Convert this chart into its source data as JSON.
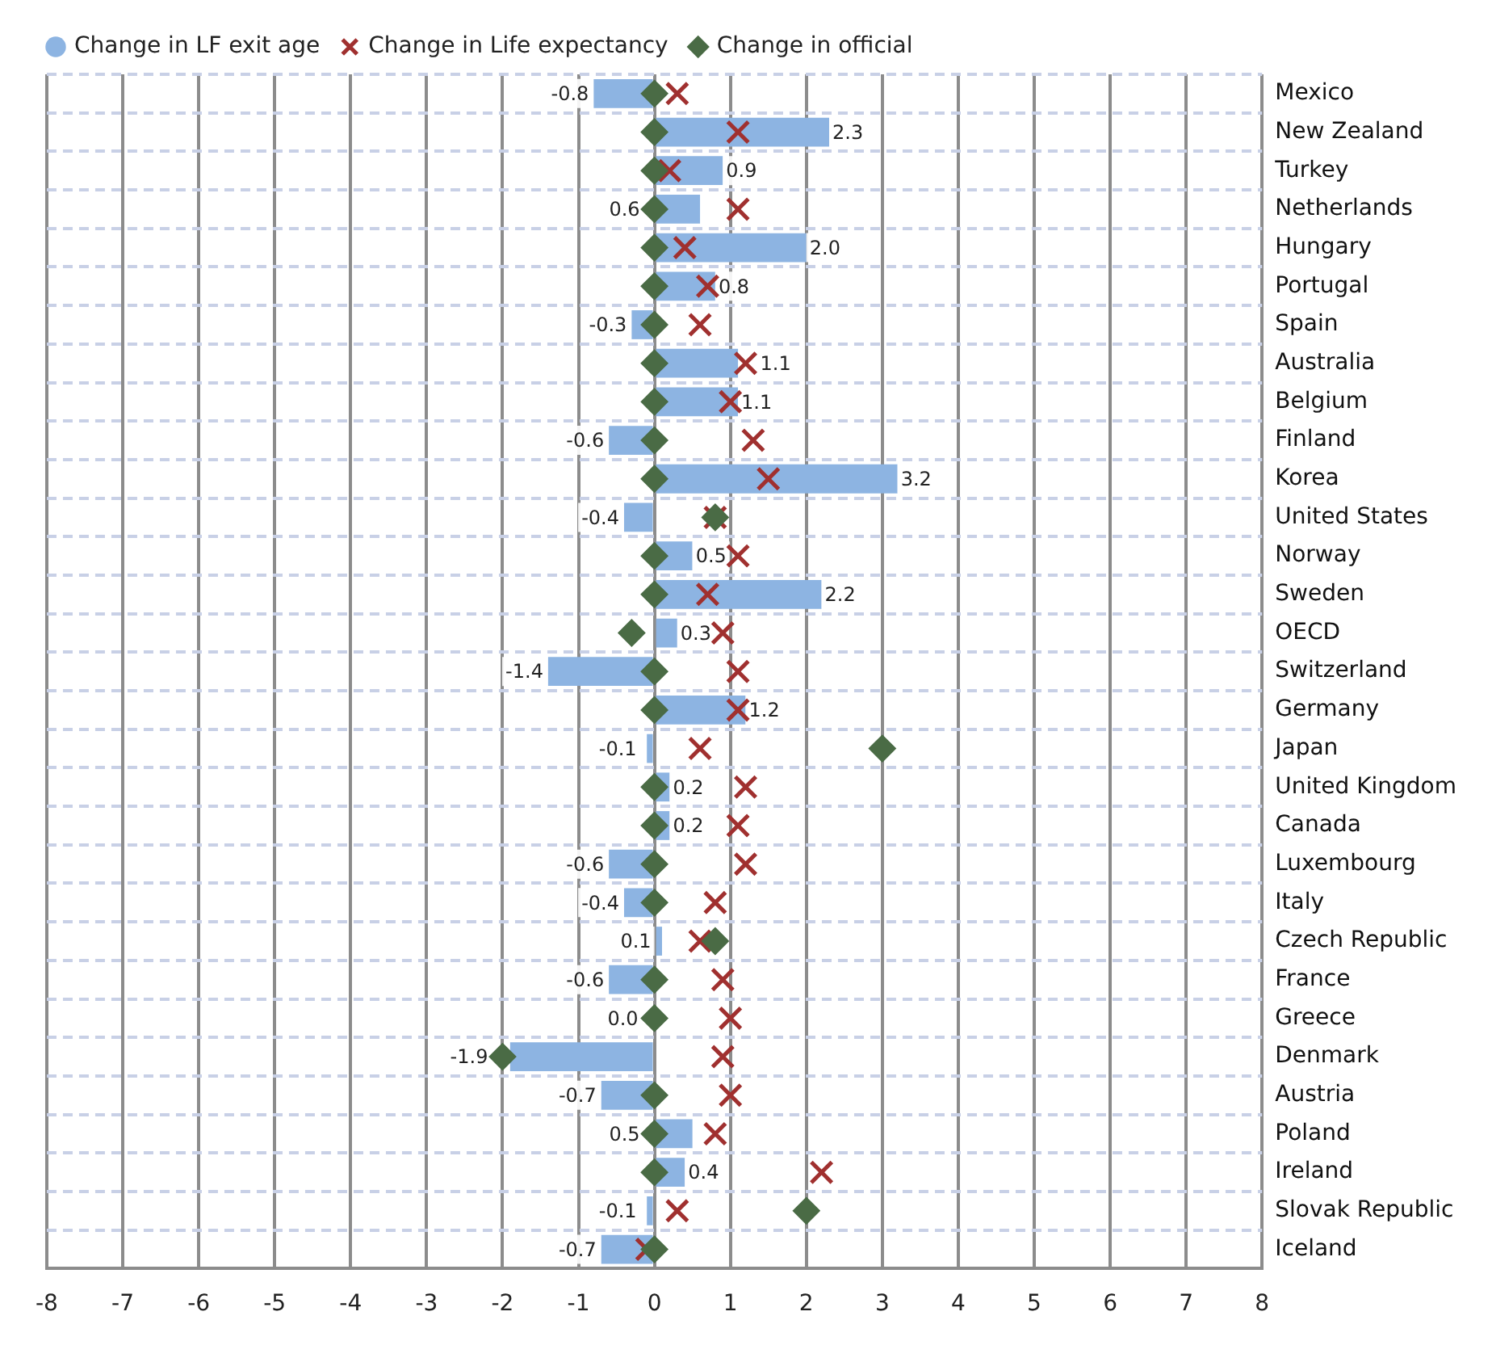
{
  "chart_data": {
    "type": "bar",
    "orientation": "horizontal",
    "categories": [
      "Mexico",
      "New Zealand",
      "Turkey",
      "Netherlands",
      "Hungary",
      "Portugal",
      "Spain",
      "Australia",
      "Belgium",
      "Finland",
      "Korea",
      "United States",
      "Norway",
      "Sweden",
      "OECD",
      "Switzerland",
      "Germany",
      "Japan",
      "United Kingdom",
      "Canada",
      "Luxembourg",
      "Italy",
      "Czech Republic",
      "France",
      "Greece",
      "Denmark",
      "Austria",
      "Poland",
      "Ireland",
      "Slovak Republic",
      "Iceland"
    ],
    "series": [
      {
        "name": "Change in LF exit age",
        "type": "bar",
        "color": "#8db4e2",
        "values": [
          -0.8,
          2.3,
          0.9,
          0.6,
          2.0,
          0.8,
          -0.3,
          1.1,
          1.1,
          -0.6,
          3.2,
          -0.4,
          0.5,
          2.2,
          0.3,
          -1.4,
          1.2,
          -0.1,
          0.2,
          0.2,
          -0.6,
          -0.4,
          0.1,
          -0.6,
          0.0,
          -1.9,
          -0.7,
          0.5,
          0.4,
          -0.1,
          -0.7
        ],
        "value_labels": [
          "-0.8",
          "2.3",
          "0.9",
          "0.6",
          "2.0",
          "0.8",
          "-0.3",
          "1.1",
          "1.1",
          "-0.6",
          "3.2",
          "-0.4",
          "0.5",
          "2.2",
          "0.3",
          "-1.4",
          "1.2",
          "-0.1",
          "0.2",
          "0.2",
          "-0.6",
          "-0.4",
          "0.1",
          "-0.6",
          "0.0",
          "-1.9",
          "-0.7",
          "0.5",
          "0.4",
          "-0.1",
          "-0.7"
        ]
      },
      {
        "name": "Change in Life expectancy",
        "type": "scatter",
        "marker": "cross",
        "color": "#a0302f",
        "values": [
          0.3,
          1.1,
          0.2,
          1.1,
          0.4,
          0.7,
          0.6,
          1.2,
          1.0,
          1.3,
          1.5,
          0.8,
          1.1,
          0.7,
          0.9,
          1.1,
          1.1,
          0.6,
          1.2,
          1.1,
          1.2,
          0.8,
          0.6,
          0.9,
          1.0,
          0.9,
          1.0,
          0.8,
          2.2,
          0.3,
          -0.1
        ]
      },
      {
        "name": "Change in official",
        "type": "scatter",
        "marker": "diamond",
        "color": "#4a6b45",
        "values": [
          0,
          0,
          0,
          0,
          0,
          0,
          0,
          0,
          0,
          0,
          0,
          0.8,
          0,
          0,
          -0.3,
          0,
          0,
          3.0,
          0,
          0,
          0,
          0,
          0.8,
          0,
          0,
          -2.0,
          0,
          0,
          0,
          2.0,
          0
        ]
      }
    ],
    "xlim": [
      -8,
      8
    ],
    "xticks": [
      -8,
      -7,
      -6,
      -5,
      -4,
      -3,
      -2,
      -1,
      0,
      1,
      2,
      3,
      4,
      5,
      6,
      7,
      8
    ],
    "grid": true,
    "legend": "top"
  }
}
